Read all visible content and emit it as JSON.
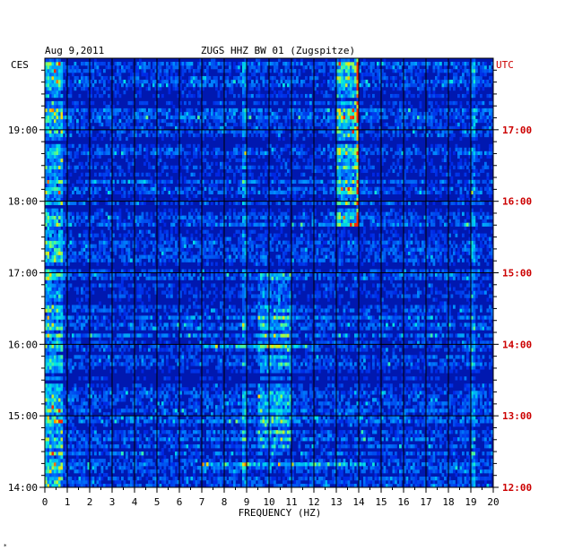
{
  "header": {
    "date": "Aug 9,2011",
    "station": "ZUGS HHZ BW 01 (Zugspitze)",
    "left_tz": "CES",
    "right_tz": "UTC"
  },
  "footer": {
    "mark": "*"
  },
  "colors": {
    "local_time_labels": "#000000",
    "utc_labels": "#cc0000",
    "background_low": "#0018b8",
    "band_dark": "#000a60"
  },
  "chart_data": {
    "type": "heatmap",
    "title": "ZUGS HHZ BW 01 (Zugspitze)",
    "xlabel": "FREQUENCY (HZ)",
    "xlim": [
      0,
      20
    ],
    "x_ticks": [
      "0",
      "1",
      "2",
      "3",
      "4",
      "5",
      "6",
      "7",
      "8",
      "9",
      "10",
      "11",
      "12",
      "13",
      "14",
      "15",
      "16",
      "17",
      "18",
      "19",
      "20"
    ],
    "local_time_range": [
      "14:00",
      "20:00"
    ],
    "local_time_ticks": [
      "19:00",
      "18:00",
      "17:00",
      "16:00",
      "15:00",
      "14:00"
    ],
    "utc_time_ticks": [
      "17:00",
      "16:00",
      "15:00",
      "14:00",
      "13:00",
      "12:00"
    ],
    "grid": true,
    "features": [
      {
        "freq_hz": [
          13.0,
          14.0
        ],
        "time": [
          "17:40",
          "20:00"
        ],
        "level": "high"
      },
      {
        "freq_hz": [
          13.9,
          14.0
        ],
        "time": [
          "17:40",
          "20:00"
        ],
        "level": "very high"
      },
      {
        "freq_hz": [
          0.0,
          0.8
        ],
        "time": [
          "14:00",
          "20:00"
        ],
        "level": "medium-high"
      },
      {
        "freq_hz": [
          9.5,
          11.0
        ],
        "time": [
          "14:30",
          "17:00"
        ],
        "level": "medium"
      },
      {
        "freq_hz": [
          7.0,
          12.0
        ],
        "time": [
          "15:57",
          "16:00"
        ],
        "level": "medium"
      },
      {
        "freq_hz": [
          7.0,
          13.5
        ],
        "time": [
          "14:18",
          "14:21"
        ],
        "level": "medium"
      }
    ]
  }
}
